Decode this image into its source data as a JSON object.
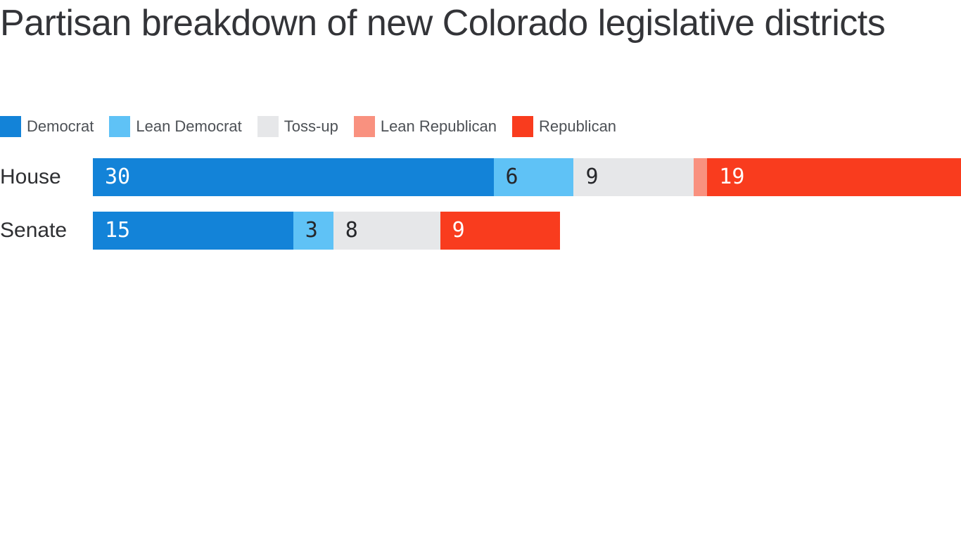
{
  "page": {
    "background": "#ffffff"
  },
  "header": {
    "title": "Partisan breakdown of new Colorado legislative districts"
  },
  "chart_data": {
    "type": "bar",
    "orientation": "horizontal",
    "stacked": true,
    "title": "Partisan breakdown of new Colorado legislative districts",
    "legend_position": "top",
    "grid": false,
    "axes_hidden": true,
    "categories": [
      "House",
      "Senate"
    ],
    "series": [
      {
        "name": "Democrat",
        "color": "#1383d8",
        "label_color": "#ffffff",
        "values": [
          30,
          15
        ]
      },
      {
        "name": "Lean Democrat",
        "color": "#5fc2f6",
        "label_color": "#26272b",
        "values": [
          6,
          3
        ]
      },
      {
        "name": "Toss-up",
        "color": "#e6e7e9",
        "label_color": "#26272b",
        "values": [
          9,
          8
        ]
      },
      {
        "name": "Lean Republican",
        "color": "#f9917f",
        "label_color": "#26272b",
        "values": [
          1,
          0
        ]
      },
      {
        "name": "Republican",
        "color": "#f93c1e",
        "label_color": "#ffffff",
        "values": [
          19,
          9
        ]
      }
    ],
    "row_totals": [
      65,
      35
    ],
    "axis_max": 65,
    "min_labeled_value": 2
  }
}
